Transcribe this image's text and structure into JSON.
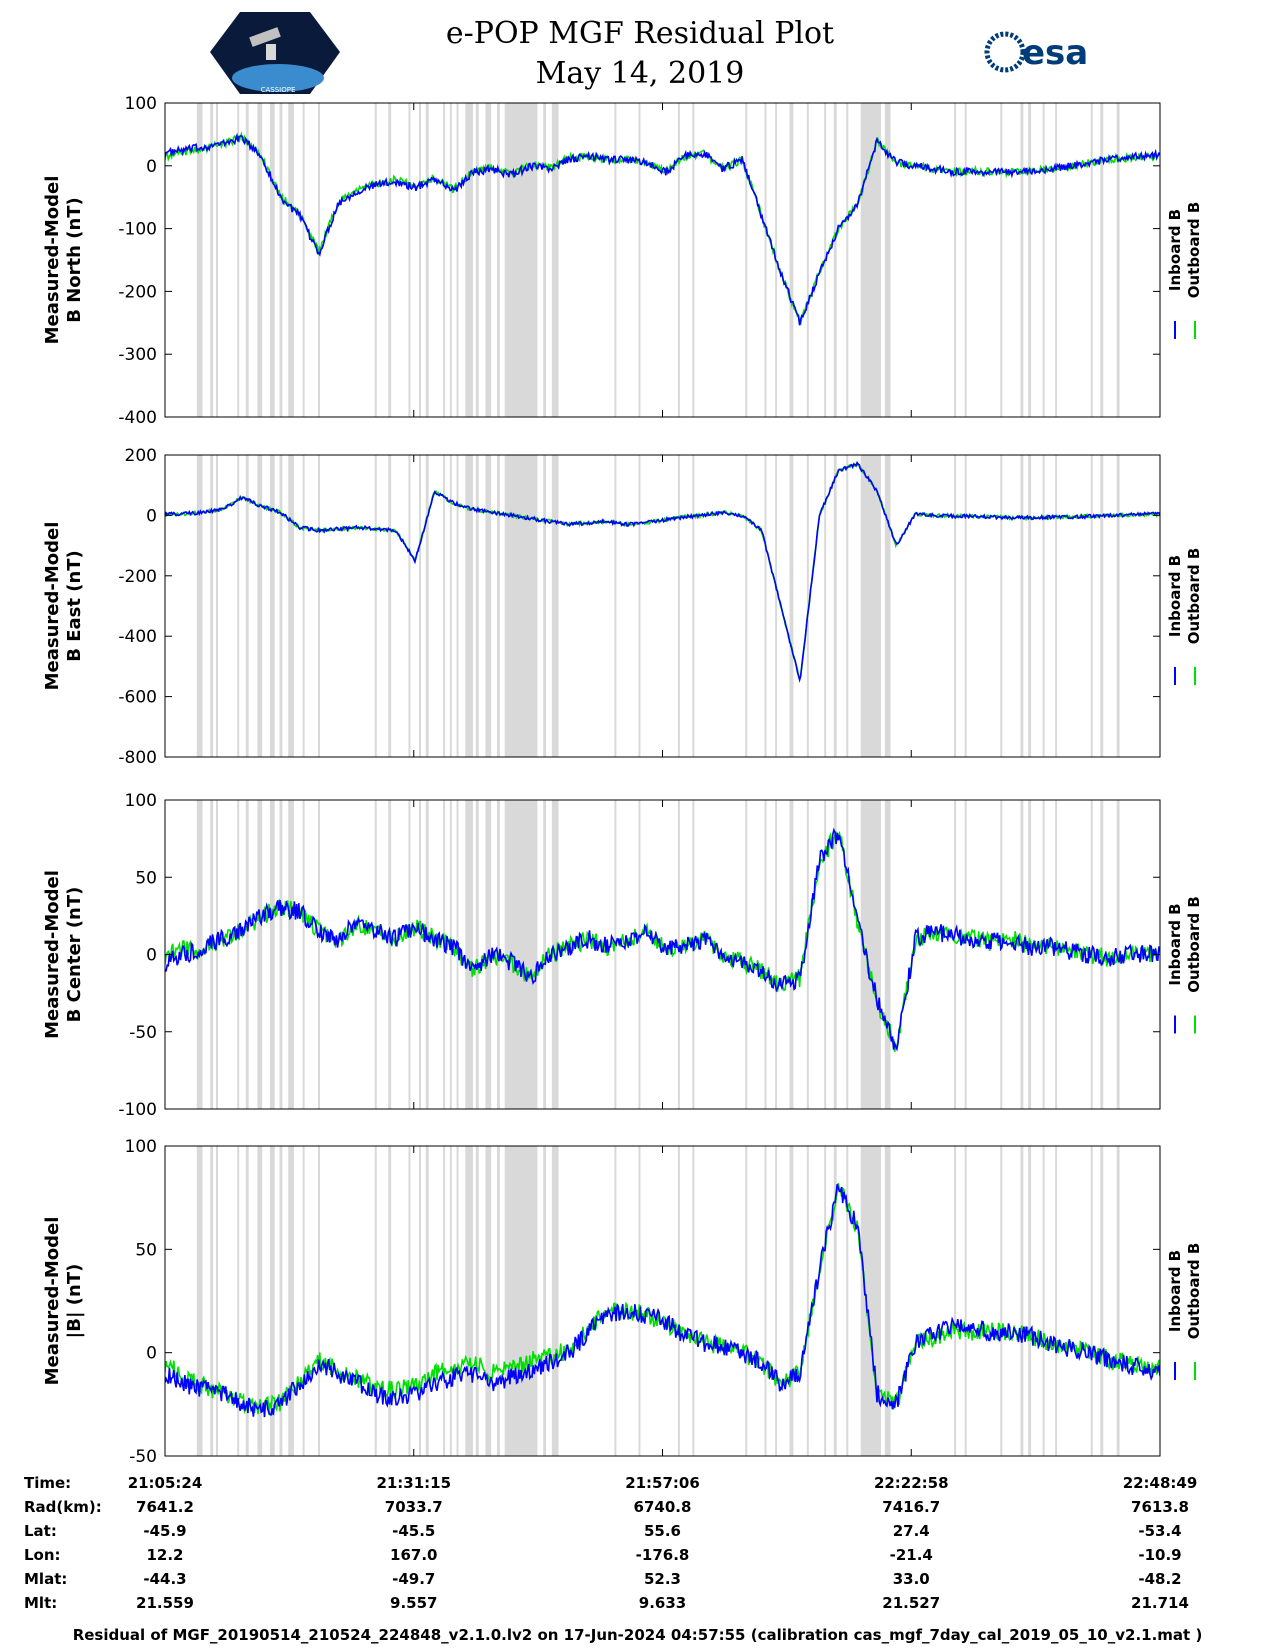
{
  "header": {
    "title": "e-POP MGF Residual Plot",
    "date": "May 14, 2019",
    "logo_left": "CASSIOPE",
    "logo_right": "esa"
  },
  "colors": {
    "inboard": "#0000ff",
    "outboard": "#00e000",
    "shading": "#d9d9d9"
  },
  "legend": {
    "inboard": "Inboard B",
    "outboard": "Outboard B"
  },
  "footer": "Residual of MGF_20190514_210524_224848_v2.1.0.lv2 on 17-Jun-2024 04:57:55 (calibration cas_mgf_7day_cal_2019_05_10_v2.1.mat )",
  "ephemeris": {
    "labels": [
      "Time:",
      "Rad(km):",
      "Lat:",
      "Lon:",
      "Mlat:",
      "Mlt:"
    ],
    "columns": [
      [
        "21:05:24",
        "7641.2",
        "-45.9",
        "12.2",
        "-44.3",
        "21.559"
      ],
      [
        "21:31:15",
        "7033.7",
        "-45.5",
        "167.0",
        "-49.7",
        "9.557"
      ],
      [
        "21:57:06",
        "6740.8",
        "55.6",
        "-176.8",
        "52.3",
        "9.633"
      ],
      [
        "22:22:58",
        "7416.7",
        "27.4",
        "-21.4",
        "33.0",
        "21.527"
      ],
      [
        "22:48:49",
        "7613.8",
        "-53.4",
        "-10.9",
        "-48.2",
        "21.714"
      ]
    ]
  },
  "chart_data": [
    {
      "type": "line",
      "ylabel": [
        "Measured-Model",
        "B North (nT)"
      ],
      "ylim": [
        -400,
        100
      ],
      "yticks": [
        -400,
        -300,
        -200,
        -100,
        0,
        100
      ],
      "xlim_minutes": [
        0,
        103.4
      ],
      "series": [
        {
          "name": "Inboard B",
          "x": [
            0,
            2,
            4,
            6,
            8,
            10,
            12,
            14,
            16,
            18,
            20,
            22,
            24,
            26,
            28,
            30,
            32,
            34,
            36,
            38,
            40,
            42,
            44,
            46,
            48,
            50,
            52,
            54,
            56,
            58,
            60,
            62,
            64,
            66,
            68,
            70,
            72,
            74,
            76,
            78,
            80,
            82,
            84,
            86,
            88,
            90,
            92,
            94,
            96,
            98,
            100,
            103.4
          ],
          "y": [
            20,
            25,
            30,
            35,
            45,
            15,
            -50,
            -80,
            -140,
            -60,
            -40,
            -30,
            -25,
            -35,
            -20,
            -40,
            -10,
            -5,
            -15,
            0,
            -5,
            10,
            15,
            10,
            10,
            5,
            -10,
            15,
            20,
            -5,
            10,
            -80,
            -170,
            -250,
            -170,
            -100,
            -60,
            40,
            5,
            0,
            -5,
            -10,
            -8,
            -10,
            -10,
            -8,
            -5,
            0,
            5,
            10,
            15,
            18
          ]
        },
        {
          "name": "Outboard B",
          "x": [
            0,
            2,
            4,
            6,
            8,
            10,
            12,
            14,
            16,
            18,
            20,
            22,
            24,
            26,
            28,
            30,
            32,
            34,
            36,
            38,
            40,
            42,
            44,
            46,
            48,
            50,
            52,
            54,
            56,
            58,
            60,
            62,
            64,
            66,
            68,
            70,
            72,
            74,
            76,
            78,
            80,
            82,
            84,
            86,
            88,
            90,
            92,
            94,
            96,
            98,
            100,
            103.4
          ],
          "y": [
            15,
            22,
            28,
            35,
            45,
            15,
            -48,
            -78,
            -138,
            -58,
            -38,
            -28,
            -22,
            -33,
            -18,
            -38,
            -8,
            -3,
            -13,
            2,
            -3,
            12,
            15,
            10,
            10,
            5,
            -10,
            15,
            20,
            -5,
            10,
            -80,
            -170,
            -250,
            -170,
            -100,
            -60,
            40,
            5,
            0,
            -5,
            -10,
            -8,
            -10,
            -10,
            -8,
            -5,
            0,
            5,
            10,
            12,
            15
          ]
        }
      ]
    },
    {
      "type": "line",
      "ylabel": [
        "Measured-Model",
        "B East (nT)"
      ],
      "ylim": [
        -800,
        200
      ],
      "yticks": [
        -800,
        -600,
        -400,
        -200,
        0,
        200
      ],
      "xlim_minutes": [
        0,
        103.4
      ],
      "series": [
        {
          "name": "Inboard B",
          "x": [
            0,
            2,
            4,
            6,
            8,
            10,
            12,
            14,
            16,
            18,
            20,
            22,
            24,
            26,
            28,
            30,
            32,
            34,
            36,
            38,
            40,
            42,
            44,
            46,
            48,
            50,
            52,
            54,
            56,
            58,
            60,
            62,
            64,
            66,
            68,
            70,
            72,
            74,
            76,
            78,
            80,
            82,
            84,
            86,
            88,
            90,
            92,
            94,
            96,
            98,
            100,
            103.4
          ],
          "y": [
            5,
            5,
            10,
            20,
            60,
            30,
            10,
            -40,
            -50,
            -45,
            -40,
            -45,
            -50,
            -150,
            80,
            40,
            20,
            10,
            0,
            -10,
            -20,
            -30,
            -25,
            -20,
            -30,
            -25,
            -15,
            -5,
            0,
            10,
            0,
            -50,
            -300,
            -550,
            0,
            150,
            170,
            80,
            -100,
            5,
            0,
            -2,
            -3,
            -5,
            -8,
            -8,
            -6,
            -5,
            -3,
            0,
            2,
            5
          ]
        },
        {
          "name": "Outboard B",
          "x": [
            0,
            2,
            4,
            6,
            8,
            10,
            12,
            14,
            16,
            18,
            20,
            22,
            24,
            26,
            28,
            30,
            32,
            34,
            36,
            38,
            40,
            42,
            44,
            46,
            48,
            50,
            52,
            54,
            56,
            58,
            60,
            62,
            64,
            66,
            68,
            70,
            72,
            74,
            76,
            78,
            80,
            82,
            84,
            86,
            88,
            90,
            92,
            94,
            96,
            98,
            100,
            103.4
          ],
          "y": [
            2,
            5,
            10,
            20,
            60,
            30,
            10,
            -40,
            -50,
            -45,
            -40,
            -45,
            -50,
            -150,
            80,
            40,
            20,
            10,
            0,
            -10,
            -20,
            -30,
            -25,
            -20,
            -30,
            -25,
            -15,
            -5,
            0,
            10,
            0,
            -50,
            -300,
            -550,
            0,
            150,
            170,
            80,
            -100,
            5,
            0,
            -2,
            -3,
            -5,
            -8,
            -8,
            -6,
            -5,
            -3,
            0,
            2,
            5
          ]
        }
      ]
    },
    {
      "type": "line",
      "ylabel": [
        "Measured-Model",
        "B Center (nT)"
      ],
      "ylim": [
        -100,
        100
      ],
      "yticks": [
        -100,
        -50,
        0,
        50,
        100
      ],
      "xlim_minutes": [
        0,
        103.4
      ],
      "series": [
        {
          "name": "Inboard B",
          "x": [
            0,
            2,
            4,
            6,
            8,
            10,
            12,
            14,
            16,
            18,
            20,
            22,
            24,
            26,
            28,
            30,
            32,
            34,
            36,
            38,
            40,
            42,
            44,
            46,
            48,
            50,
            52,
            54,
            56,
            58,
            60,
            62,
            64,
            66,
            68,
            70,
            72,
            74,
            76,
            78,
            80,
            82,
            84,
            86,
            88,
            90,
            92,
            94,
            96,
            98,
            100,
            103.4
          ],
          "y": [
            -5,
            0,
            5,
            10,
            15,
            25,
            30,
            28,
            15,
            10,
            20,
            15,
            10,
            18,
            10,
            5,
            -10,
            0,
            -5,
            -15,
            0,
            5,
            10,
            5,
            10,
            15,
            5,
            5,
            10,
            0,
            -5,
            -10,
            -20,
            -15,
            60,
            80,
            20,
            -30,
            -60,
            10,
            15,
            12,
            10,
            8,
            10,
            5,
            5,
            2,
            0,
            -2,
            0,
            0
          ]
        },
        {
          "name": "Outboard B",
          "x": [
            0,
            2,
            4,
            6,
            8,
            10,
            12,
            14,
            16,
            18,
            20,
            22,
            24,
            26,
            28,
            30,
            32,
            34,
            36,
            38,
            40,
            42,
            44,
            46,
            48,
            50,
            52,
            54,
            56,
            58,
            60,
            62,
            64,
            66,
            68,
            70,
            72,
            74,
            76,
            78,
            80,
            82,
            84,
            86,
            88,
            90,
            92,
            94,
            96,
            98,
            100,
            103.4
          ],
          "y": [
            0,
            3,
            5,
            10,
            15,
            25,
            30,
            28,
            15,
            10,
            20,
            15,
            10,
            18,
            10,
            5,
            -10,
            0,
            -5,
            -15,
            0,
            5,
            10,
            5,
            10,
            15,
            5,
            5,
            10,
            0,
            -5,
            -10,
            -20,
            -15,
            60,
            80,
            20,
            -30,
            -60,
            10,
            15,
            12,
            10,
            8,
            10,
            5,
            5,
            2,
            0,
            -2,
            0,
            0
          ]
        }
      ]
    },
    {
      "type": "line",
      "ylabel": [
        "Measured-Model",
        "|B| (nT)"
      ],
      "ylim": [
        -50,
        100
      ],
      "yticks": [
        -50,
        0,
        50,
        100
      ],
      "xlim_minutes": [
        0,
        103.4
      ],
      "series": [
        {
          "name": "Inboard B",
          "x": [
            0,
            2,
            4,
            6,
            8,
            10,
            12,
            14,
            16,
            18,
            20,
            22,
            24,
            26,
            28,
            30,
            32,
            34,
            36,
            38,
            40,
            42,
            44,
            46,
            48,
            50,
            52,
            54,
            56,
            58,
            60,
            62,
            64,
            66,
            68,
            70,
            72,
            74,
            76,
            78,
            80,
            82,
            84,
            86,
            88,
            90,
            92,
            94,
            96,
            98,
            100,
            103.4
          ],
          "y": [
            -10,
            -15,
            -18,
            -20,
            -25,
            -28,
            -25,
            -15,
            -5,
            -10,
            -15,
            -20,
            -22,
            -20,
            -15,
            -12,
            -10,
            -15,
            -12,
            -8,
            -5,
            0,
            10,
            18,
            20,
            18,
            15,
            8,
            5,
            3,
            0,
            -5,
            -15,
            -10,
            40,
            80,
            60,
            -20,
            -25,
            5,
            10,
            12,
            12,
            10,
            10,
            8,
            5,
            2,
            0,
            -3,
            -6,
            -10
          ]
        },
        {
          "name": "Outboard B",
          "x": [
            0,
            2,
            4,
            6,
            8,
            10,
            12,
            14,
            16,
            18,
            20,
            22,
            24,
            26,
            28,
            30,
            32,
            34,
            36,
            38,
            40,
            42,
            44,
            46,
            48,
            50,
            52,
            54,
            56,
            58,
            60,
            62,
            64,
            66,
            68,
            70,
            72,
            74,
            76,
            78,
            80,
            82,
            84,
            86,
            88,
            90,
            92,
            94,
            96,
            98,
            100,
            103.4
          ],
          "y": [
            -5,
            -12,
            -16,
            -20,
            -24,
            -27,
            -24,
            -14,
            -4,
            -9,
            -13,
            -17,
            -18,
            -16,
            -10,
            -7,
            -5,
            -10,
            -8,
            -4,
            -2,
            2,
            12,
            19,
            20,
            18,
            15,
            8,
            5,
            3,
            0,
            -5,
            -15,
            -10,
            40,
            80,
            60,
            -20,
            -25,
            5,
            8,
            10,
            10,
            10,
            10,
            8,
            5,
            2,
            0,
            -3,
            -5,
            -8
          ]
        }
      ]
    }
  ],
  "shaded_intervals_minutes": [
    [
      3.3,
      3.9
    ],
    [
      4.7,
      5.0
    ],
    [
      5.3,
      5.5
    ],
    [
      7.5,
      7.7
    ],
    [
      8.4,
      8.7
    ],
    [
      9.6,
      10.1
    ],
    [
      10.9,
      11.4
    ],
    [
      11.9,
      12.2
    ],
    [
      12.8,
      13.4
    ],
    [
      14.3,
      14.5
    ],
    [
      15.9,
      16.1
    ],
    [
      21.8,
      22.0
    ],
    [
      23.2,
      23.5
    ],
    [
      25.3,
      25.5
    ],
    [
      26.4,
      26.6
    ],
    [
      27.1,
      27.4
    ],
    [
      28.9,
      29.1
    ],
    [
      29.6,
      29.8
    ],
    [
      30.3,
      30.5
    ],
    [
      31.2,
      32.0
    ],
    [
      32.3,
      32.6
    ],
    [
      33.3,
      33.9
    ],
    [
      34.5,
      34.8
    ],
    [
      35.3,
      38.7
    ],
    [
      39.3,
      39.6
    ],
    [
      40.2,
      40.9
    ],
    [
      46.7,
      46.9
    ],
    [
      49.2,
      49.4
    ],
    [
      53.3,
      53.5
    ],
    [
      54.8,
      55.0
    ],
    [
      60.3,
      60.5
    ],
    [
      62.3,
      62.5
    ],
    [
      63.4,
      63.6
    ],
    [
      64.9,
      65.3
    ],
    [
      66.7,
      66.9
    ],
    [
      68.5,
      68.7
    ],
    [
      69.5,
      69.8
    ],
    [
      70.8,
      71.0
    ],
    [
      72.3,
      74.4
    ],
    [
      74.8,
      75.4
    ],
    [
      82.0,
      82.2
    ],
    [
      83.1,
      83.3
    ],
    [
      86.8,
      87.0
    ],
    [
      88.9,
      89.2
    ],
    [
      89.7,
      90.0
    ],
    [
      91.2,
      91.4
    ],
    [
      92.5,
      92.7
    ],
    [
      96.2,
      96.4
    ],
    [
      97.2,
      97.5
    ],
    [
      98.9,
      99.2
    ]
  ]
}
